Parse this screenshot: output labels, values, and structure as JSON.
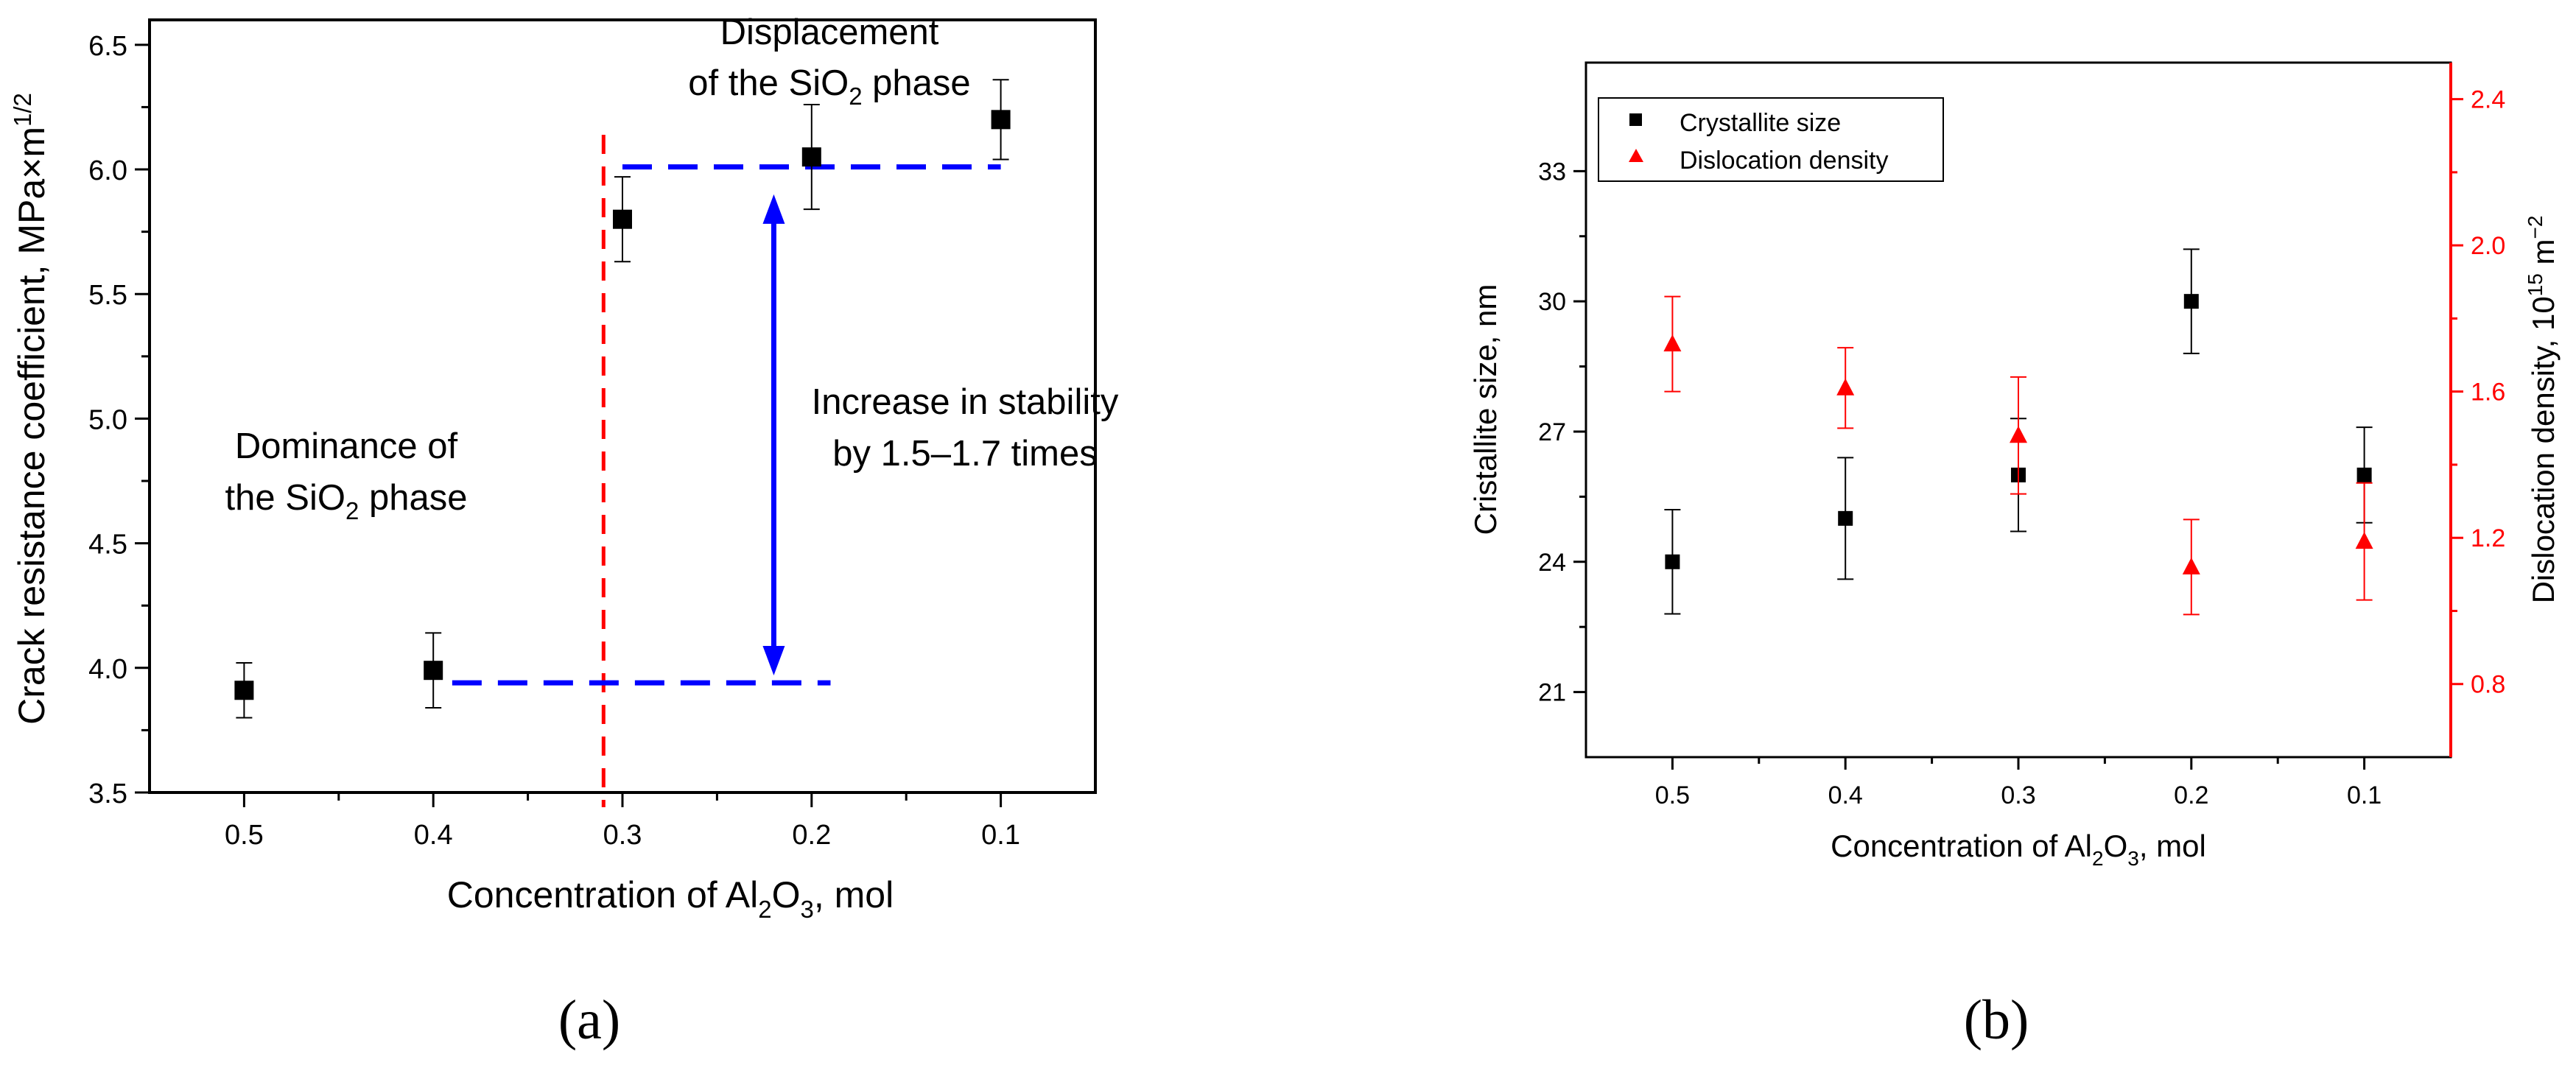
{
  "chart_data": [
    {
      "type": "scatter",
      "panel_label": "(a)",
      "title": "",
      "xlabel": {
        "pre": "Concentration of Al",
        "sub1": "2",
        "mid": "O",
        "sub2": "3",
        "post": ", mol"
      },
      "ylabel": {
        "pre": "Crack resistance coefficient, MPa×m",
        "sup": "1/2"
      },
      "xlim": [
        0.55,
        0.05
      ],
      "ylim": [
        3.5,
        6.6
      ],
      "xticks": [
        0.5,
        0.4,
        0.3,
        0.2,
        0.1
      ],
      "xtick_labels": [
        "0.5",
        "0.4",
        "0.3",
        "0.2",
        "0.1"
      ],
      "yticks": [
        3.5,
        4.0,
        4.5,
        5.0,
        5.5,
        6.0,
        6.5
      ],
      "ytick_labels": [
        "3.5",
        "4.0",
        "4.5",
        "5.0",
        "5.5",
        "6.0",
        "6.5"
      ],
      "series": [
        {
          "name": "Crack resistance coefficient",
          "marker": "square",
          "color": "#000000",
          "x": [
            0.5,
            0.4,
            0.3,
            0.2,
            0.1
          ],
          "y": [
            3.91,
            3.99,
            5.8,
            6.05,
            6.2
          ],
          "err": [
            0.11,
            0.15,
            0.17,
            0.21,
            0.16
          ]
        }
      ],
      "reference_lines": [
        {
          "name": "phase boundary",
          "orientation": "vertical",
          "x": 0.31,
          "color": "#ff0000",
          "style": "dashed"
        },
        {
          "name": "low level",
          "orientation": "horizontal",
          "y": 3.94,
          "x_from": 0.39,
          "x_to": 0.19,
          "color": "#0000ff",
          "style": "dashed"
        },
        {
          "name": "high level",
          "orientation": "horizontal",
          "y": 6.01,
          "x_from": 0.3,
          "x_to": 0.1,
          "color": "#0000ff",
          "style": "dashed"
        }
      ],
      "arrow": {
        "x": 0.22,
        "y_from": 3.97,
        "y_to": 5.9,
        "color": "#0000ff"
      },
      "annotations": {
        "dominance": {
          "line1": "Dominance of",
          "line2_pre": "the SiO",
          "line2_sub": "2",
          "line2_post": " phase"
        },
        "displacement": {
          "line1": "Displacement",
          "line2_pre": "of the SiO",
          "line2_sub": "2",
          "line2_post": " phase"
        },
        "increase": {
          "line1": "Increase in stability",
          "line2": "by 1.5–1.7 times"
        }
      }
    },
    {
      "type": "scatter",
      "panel_label": "(b)",
      "title": "",
      "xlabel": {
        "pre": "Concentration of Al",
        "sub1": "2",
        "mid": "O",
        "sub2": "3",
        "post": ", mol"
      },
      "ylabel": "Cristallite size, nm",
      "y2label": {
        "pre": "Dislocation density, 10",
        "sup1": "15",
        "mid": " m",
        "sup2": "−2"
      },
      "xlim": [
        0.55,
        0.05
      ],
      "ylim": [
        19.5,
        35.5
      ],
      "y2lim": [
        0.6,
        2.5
      ],
      "xticks": [
        0.5,
        0.4,
        0.3,
        0.2,
        0.1
      ],
      "xtick_labels": [
        "0.5",
        "0.4",
        "0.3",
        "0.2",
        "0.1"
      ],
      "yticks": [
        21,
        24,
        27,
        30,
        33
      ],
      "ytick_labels": [
        "21",
        "24",
        "27",
        "30",
        "33"
      ],
      "y2ticks": [
        0.8,
        1.2,
        1.6,
        2.0,
        2.4
      ],
      "y2tick_labels": [
        "0.8",
        "1.2",
        "1.6",
        "2.0",
        "2.4"
      ],
      "series": [
        {
          "name": "Crystallite size",
          "axis": "left",
          "marker": "square",
          "color": "#000000",
          "x": [
            0.5,
            0.4,
            0.3,
            0.2,
            0.1
          ],
          "y": [
            24.0,
            25.0,
            26.0,
            30.0,
            26.0
          ],
          "err": [
            1.2,
            1.4,
            1.3,
            1.2,
            1.1
          ]
        },
        {
          "name": "Dislocation density",
          "axis": "right",
          "marker": "triangle",
          "color": "#ff0000",
          "x": [
            0.5,
            0.4,
            0.3,
            0.2,
            0.1
          ],
          "y": [
            1.73,
            1.61,
            1.48,
            1.12,
            1.19
          ],
          "err": [
            0.13,
            0.11,
            0.16,
            0.13,
            0.16
          ]
        }
      ],
      "legend": {
        "position": "top-left",
        "entries": [
          "Crystallite size",
          "Dislocation density"
        ]
      }
    }
  ]
}
